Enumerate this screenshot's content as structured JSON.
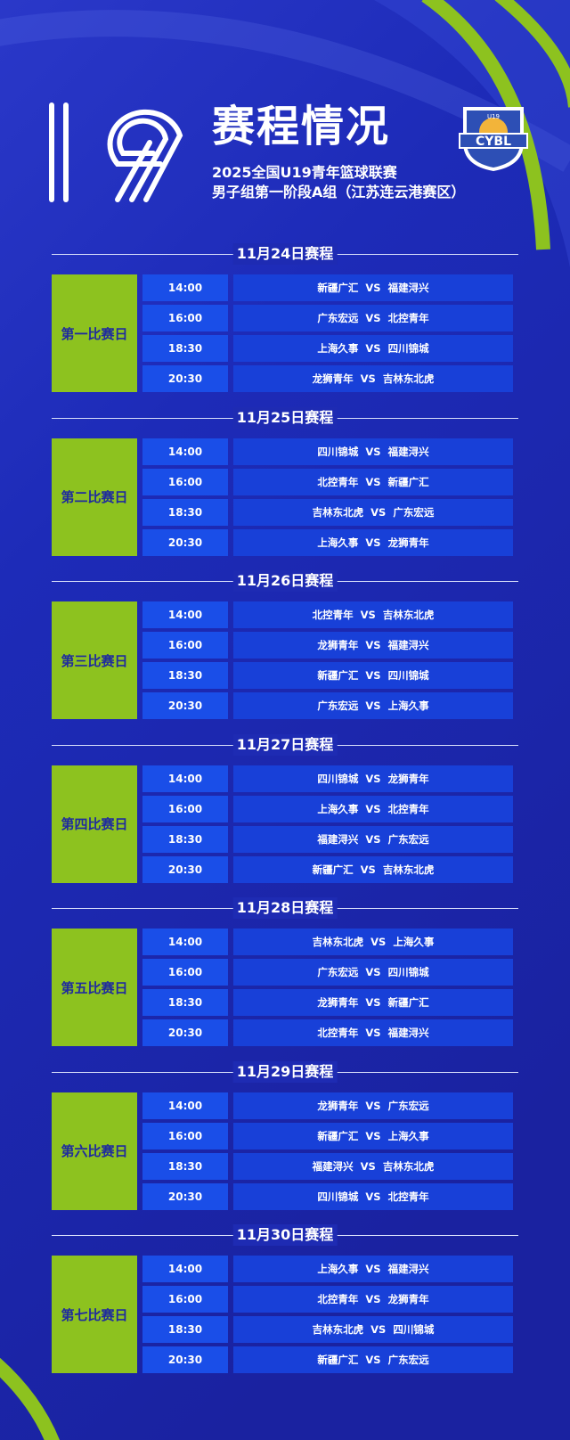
{
  "header": {
    "emblem_number": "19",
    "title": "赛程情况",
    "subtitle_line1": "2025全国U19青年篮球联赛",
    "subtitle_line2": "男子组第一阶段A组（江苏连云港赛区）",
    "logo_text": "CYBL",
    "logo_badge": "U19"
  },
  "colors": {
    "background": "#1e2bb3",
    "accent_green": "#8dc21f",
    "time_cell": "#1a4ee8",
    "match_cell": "#1840d8"
  },
  "vs": "VS",
  "days": [
    {
      "date": "11月24日赛程",
      "label": "第一比赛日",
      "games": [
        {
          "time": "14:00",
          "home": "新疆广汇",
          "away": "福建浔兴"
        },
        {
          "time": "16:00",
          "home": "广东宏远",
          "away": "北控青年"
        },
        {
          "time": "18:30",
          "home": "上海久事",
          "away": "四川锦城"
        },
        {
          "time": "20:30",
          "home": "龙狮青年",
          "away": "吉林东北虎"
        }
      ]
    },
    {
      "date": "11月25日赛程",
      "label": "第二比赛日",
      "games": [
        {
          "time": "14:00",
          "home": "四川锦城",
          "away": "福建浔兴"
        },
        {
          "time": "16:00",
          "home": "北控青年",
          "away": "新疆广汇"
        },
        {
          "time": "18:30",
          "home": "吉林东北虎",
          "away": "广东宏远"
        },
        {
          "time": "20:30",
          "home": "上海久事",
          "away": "龙狮青年"
        }
      ]
    },
    {
      "date": "11月26日赛程",
      "label": "第三比赛日",
      "games": [
        {
          "time": "14:00",
          "home": "北控青年",
          "away": "吉林东北虎"
        },
        {
          "time": "16:00",
          "home": "龙狮青年",
          "away": "福建浔兴"
        },
        {
          "time": "18:30",
          "home": "新疆广汇",
          "away": "四川锦城"
        },
        {
          "time": "20:30",
          "home": "广东宏远",
          "away": "上海久事"
        }
      ]
    },
    {
      "date": "11月27日赛程",
      "label": "第四比赛日",
      "games": [
        {
          "time": "14:00",
          "home": "四川锦城",
          "away": "龙狮青年"
        },
        {
          "time": "16:00",
          "home": "上海久事",
          "away": "北控青年"
        },
        {
          "time": "18:30",
          "home": "福建浔兴",
          "away": "广东宏远"
        },
        {
          "time": "20:30",
          "home": "新疆广汇",
          "away": "吉林东北虎"
        }
      ]
    },
    {
      "date": "11月28日赛程",
      "label": "第五比赛日",
      "games": [
        {
          "time": "14:00",
          "home": "吉林东北虎",
          "away": "上海久事"
        },
        {
          "time": "16:00",
          "home": "广东宏远",
          "away": "四川锦城"
        },
        {
          "time": "18:30",
          "home": "龙狮青年",
          "away": "新疆广汇"
        },
        {
          "time": "20:30",
          "home": "北控青年",
          "away": "福建浔兴"
        }
      ]
    },
    {
      "date": "11月29日赛程",
      "label": "第六比赛日",
      "games": [
        {
          "time": "14:00",
          "home": "龙狮青年",
          "away": "广东宏远"
        },
        {
          "time": "16:00",
          "home": "新疆广汇",
          "away": "上海久事"
        },
        {
          "time": "18:30",
          "home": "福建浔兴",
          "away": "吉林东北虎"
        },
        {
          "time": "20:30",
          "home": "四川锦城",
          "away": "北控青年"
        }
      ]
    },
    {
      "date": "11月30日赛程",
      "label": "第七比赛日",
      "games": [
        {
          "time": "14:00",
          "home": "上海久事",
          "away": "福建浔兴"
        },
        {
          "time": "16:00",
          "home": "北控青年",
          "away": "龙狮青年"
        },
        {
          "time": "18:30",
          "home": "吉林东北虎",
          "away": "四川锦城"
        },
        {
          "time": "20:30",
          "home": "新疆广汇",
          "away": "广东宏远"
        }
      ]
    }
  ]
}
